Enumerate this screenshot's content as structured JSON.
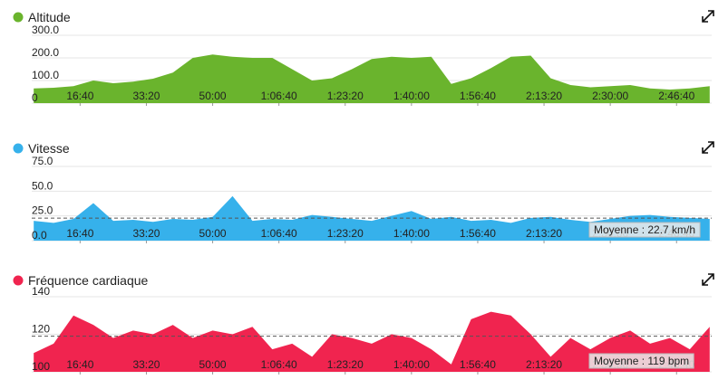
{
  "chart_data": [
    {
      "type": "area",
      "title": "Altitude",
      "color": "#6ab42d",
      "x": [
        300,
        600,
        900,
        1200,
        1500,
        1800,
        2100,
        2400,
        2700,
        3000,
        3300,
        3600,
        3900,
        4200,
        4500,
        4800,
        5100,
        5400,
        5700,
        6000,
        6300,
        6600,
        6900,
        7200,
        7500,
        7800,
        8100,
        8400,
        8700,
        9000,
        9300,
        9600,
        9900,
        10200,
        10500
      ],
      "values": [
        65,
        68,
        75,
        100,
        88,
        95,
        108,
        135,
        200,
        215,
        205,
        200,
        200,
        150,
        100,
        110,
        150,
        195,
        205,
        200,
        205,
        85,
        110,
        155,
        205,
        210,
        110,
        80,
        70,
        75,
        80,
        65,
        60,
        65,
        75
      ],
      "xlim": [
        270,
        10530
      ],
      "ylim": [
        0,
        300
      ],
      "yticks": [
        {
          "value": 0,
          "label": "0"
        },
        {
          "value": 100,
          "label": "100.0"
        },
        {
          "value": 200,
          "label": "200.0"
        },
        {
          "value": 300,
          "label": "300.0"
        }
      ],
      "xticks": [
        {
          "value": 1000,
          "label": "16:40"
        },
        {
          "value": 2000,
          "label": "33:20"
        },
        {
          "value": 3000,
          "label": "50:00"
        },
        {
          "value": 4000,
          "label": "1:06:40"
        },
        {
          "value": 5000,
          "label": "1:23:20"
        },
        {
          "value": 6000,
          "label": "1:40:00"
        },
        {
          "value": 7000,
          "label": "1:56:40"
        },
        {
          "value": 8000,
          "label": "2:13:20"
        },
        {
          "value": 9000,
          "label": "2:30:00"
        },
        {
          "value": 10000,
          "label": "2:46:40"
        }
      ],
      "grid": true
    },
    {
      "type": "area",
      "title": "Vitesse",
      "color": "#36b1eb",
      "x": [
        300,
        600,
        900,
        1200,
        1500,
        1800,
        2100,
        2400,
        2700,
        3000,
        3300,
        3600,
        3900,
        4200,
        4500,
        4800,
        5100,
        5400,
        5700,
        6000,
        6300,
        6600,
        6900,
        7200,
        7500,
        7800,
        8100,
        8400,
        8700,
        9000,
        9300,
        9600,
        9900,
        10200,
        10500
      ],
      "values": [
        20,
        18,
        22,
        38,
        20,
        21,
        19,
        22,
        21,
        24,
        45,
        20,
        22,
        21,
        26,
        24,
        22,
        20,
        25,
        30,
        22,
        24,
        20,
        21,
        18,
        23,
        24,
        21,
        19,
        22,
        25,
        26,
        24,
        23,
        22
      ],
      "xlim": [
        270,
        10530
      ],
      "ylim": [
        0,
        75
      ],
      "yticks": [
        {
          "value": 0,
          "label": "0.0"
        },
        {
          "value": 25,
          "label": "25.0"
        },
        {
          "value": 50,
          "label": "50.0"
        },
        {
          "value": 75,
          "label": "75.0"
        }
      ],
      "xticks": [
        {
          "value": 1000,
          "label": "16:40"
        },
        {
          "value": 2000,
          "label": "33:20"
        },
        {
          "value": 3000,
          "label": "50:00"
        },
        {
          "value": 4000,
          "label": "1:06:40"
        },
        {
          "value": 5000,
          "label": "1:23:20"
        },
        {
          "value": 6000,
          "label": "1:40:00"
        },
        {
          "value": 7000,
          "label": "1:56:40"
        },
        {
          "value": 8000,
          "label": "2:13:20"
        },
        {
          "value": 9000,
          "label": "2:30:00"
        },
        {
          "value": 10000,
          "label": "2:46:40"
        }
      ],
      "grid": true,
      "average": 22.7,
      "average_label": "Moyenne : 22.7 km/h"
    },
    {
      "type": "area",
      "title": "Fréquence cardiaque",
      "color": "#f0244f",
      "x": [
        300,
        600,
        900,
        1200,
        1500,
        1800,
        2100,
        2400,
        2700,
        3000,
        3300,
        3600,
        3900,
        4200,
        4500,
        4800,
        5100,
        5400,
        5700,
        6000,
        6300,
        6600,
        6900,
        7200,
        7500,
        7800,
        8100,
        8400,
        8700,
        9000,
        9300,
        9600,
        9900,
        10200,
        10500
      ],
      "values": [
        110,
        115,
        130,
        125,
        118,
        122,
        120,
        125,
        118,
        122,
        120,
        124,
        112,
        115,
        108,
        120,
        118,
        115,
        120,
        118,
        112,
        104,
        128,
        132,
        130,
        120,
        108,
        118,
        112,
        118,
        122,
        115,
        118,
        112,
        124
      ],
      "xlim": [
        270,
        10530
      ],
      "ylim": [
        100,
        140
      ],
      "yticks": [
        100,
        120,
        140
      ],
      "xticks": [
        {
          "value": 1000,
          "label": "16:40"
        },
        {
          "value": 2000,
          "label": "33:20"
        },
        {
          "value": 3000,
          "label": "50:00"
        },
        {
          "value": 4000,
          "label": "1:06:40"
        },
        {
          "value": 5000,
          "label": "1:23:20"
        },
        {
          "value": 6000,
          "label": "1:40:00"
        },
        {
          "value": 7000,
          "label": "1:56:40"
        },
        {
          "value": 8000,
          "label": "2:13:20"
        },
        {
          "value": 9000,
          "label": "2:30:00"
        },
        {
          "value": 10000,
          "label": "2:46:40"
        }
      ],
      "grid": true,
      "average": 119,
      "average_label": "Moyenne : 119 bpm"
    }
  ]
}
